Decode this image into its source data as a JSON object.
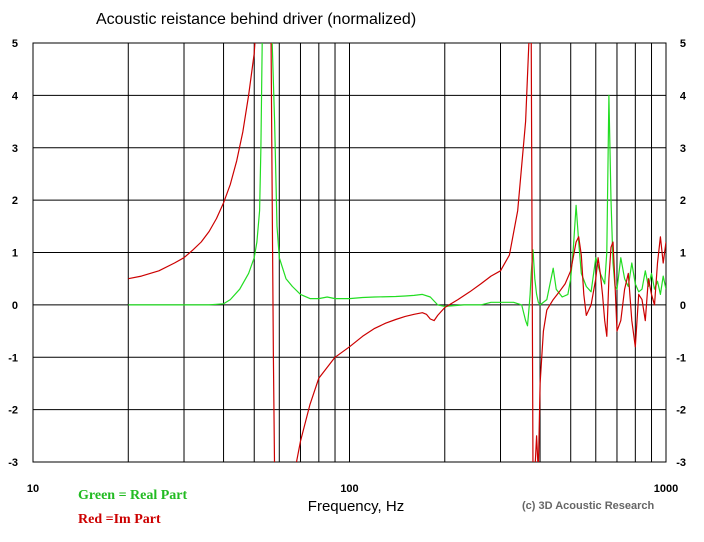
{
  "chart_data": {
    "type": "line",
    "title": "Acoustic reistance behind driver (normalized)",
    "xlabel": "Frequency, Hz",
    "ylabel": "",
    "xscale": "log",
    "xlim": [
      10,
      1000
    ],
    "ylim": [
      -3,
      5
    ],
    "x_ticks": [
      10,
      100,
      1000
    ],
    "x_tick_labels": [
      "10",
      "100",
      "1000"
    ],
    "y_ticks": [
      -3,
      -2,
      -1,
      0,
      1,
      2,
      3,
      4,
      5
    ],
    "y_tick_labels": [
      "-3",
      "-2",
      "-1",
      "0",
      "1",
      "2",
      "3",
      "4",
      "5"
    ],
    "grid": true,
    "legend": [
      {
        "label": "Green = Real Part",
        "color": "#22bb22"
      },
      {
        "label": "Red =Im Part",
        "color": "#cc0000"
      }
    ],
    "credit": "(c) 3D Acoustic Research",
    "series": [
      {
        "name": "Real Part",
        "color": "#22dd22",
        "x": [
          20,
          22,
          25,
          28,
          30,
          33,
          36,
          40,
          42,
          45,
          48,
          50,
          51,
          52,
          52.5,
          53,
          54,
          56,
          57,
          58,
          58.5,
          59,
          60,
          63,
          66,
          70,
          75,
          80,
          85,
          90,
          100,
          110,
          120,
          140,
          150,
          160,
          170,
          180,
          190,
          200,
          230,
          260,
          280,
          300,
          330,
          350,
          360,
          365,
          370,
          372,
          375,
          380,
          385,
          390,
          395,
          400,
          420,
          440,
          450,
          470,
          490,
          500,
          510,
          520,
          530,
          540,
          560,
          580,
          600,
          620,
          640,
          650,
          660,
          670,
          680,
          690,
          700,
          710,
          720,
          740,
          760,
          780,
          800,
          820,
          840,
          860,
          880,
          900,
          920,
          940,
          960,
          980,
          1000
        ],
        "y": [
          0.0,
          0.0,
          0.0,
          0.0,
          0.0,
          0.0,
          0.0,
          0.02,
          0.1,
          0.3,
          0.6,
          0.9,
          1.2,
          1.8,
          3.0,
          5.0,
          5.2,
          5.2,
          5.0,
          3.5,
          2.5,
          1.5,
          0.9,
          0.5,
          0.35,
          0.2,
          0.12,
          0.12,
          0.15,
          0.12,
          0.12,
          0.14,
          0.15,
          0.16,
          0.17,
          0.18,
          0.2,
          0.15,
          0.0,
          -0.03,
          0.0,
          0.0,
          0.05,
          0.05,
          0.05,
          0.0,
          -0.3,
          -0.4,
          0.0,
          0.2,
          0.6,
          1.05,
          0.5,
          0.2,
          0.05,
          0.0,
          0.1,
          0.7,
          0.3,
          0.15,
          0.2,
          0.5,
          1.1,
          1.9,
          1.2,
          0.6,
          0.35,
          0.25,
          0.9,
          0.6,
          0.4,
          1.0,
          4.0,
          2.0,
          0.8,
          0.35,
          0.3,
          0.6,
          0.9,
          0.5,
          0.35,
          0.8,
          0.4,
          0.25,
          0.3,
          0.65,
          0.35,
          0.6,
          0.3,
          0.45,
          0.2,
          0.55,
          0.3
        ]
      },
      {
        "name": "Im Part",
        "color": "#cc0000",
        "x": [
          20,
          22,
          25,
          28,
          30,
          32,
          34,
          36,
          38,
          40,
          42,
          44,
          46,
          48,
          50,
          50.5,
          51,
          51.5,
          52,
          52.5,
          53,
          54,
          55,
          56,
          56.5,
          57,
          57.5,
          58,
          58.5,
          59,
          60,
          62,
          64,
          66,
          68,
          70,
          75,
          80,
          90,
          100,
          110,
          120,
          130,
          140,
          150,
          160,
          170,
          175,
          180,
          185,
          190,
          200,
          220,
          240,
          260,
          280,
          300,
          320,
          340,
          360,
          370,
          375,
          380,
          382,
          385,
          390,
          395,
          400,
          410,
          420,
          440,
          460,
          480,
          500,
          520,
          530,
          540,
          550,
          560,
          580,
          600,
          610,
          620,
          630,
          640,
          650,
          660,
          670,
          680,
          690,
          700,
          720,
          740,
          760,
          780,
          800,
          820,
          840,
          860,
          880,
          900,
          920,
          940,
          960,
          980,
          1000
        ],
        "y": [
          0.5,
          0.55,
          0.65,
          0.8,
          0.9,
          1.05,
          1.2,
          1.4,
          1.65,
          1.95,
          2.3,
          2.75,
          3.3,
          4.0,
          4.8,
          5.2,
          5.2,
          5.2,
          5.2,
          5.2,
          5.2,
          5.2,
          5.2,
          5.2,
          5.2,
          2.0,
          -1.0,
          -3.2,
          -3.2,
          -3.2,
          -3.2,
          -3.2,
          -3.2,
          -3.2,
          -3.0,
          -2.6,
          -1.9,
          -1.4,
          -1.0,
          -0.8,
          -0.6,
          -0.45,
          -0.35,
          -0.28,
          -0.22,
          -0.18,
          -0.15,
          -0.18,
          -0.27,
          -0.3,
          -0.2,
          -0.05,
          0.1,
          0.25,
          0.4,
          0.55,
          0.65,
          0.95,
          1.8,
          3.5,
          5.2,
          5.2,
          -3.2,
          -3.2,
          -3.2,
          -2.5,
          -3.2,
          -1.5,
          -0.5,
          -0.1,
          0.1,
          0.25,
          0.4,
          0.65,
          1.2,
          1.3,
          0.95,
          0.2,
          -0.2,
          0.0,
          0.5,
          0.9,
          0.6,
          0.2,
          -0.3,
          -0.6,
          0.5,
          1.1,
          1.2,
          0.4,
          -0.5,
          -0.3,
          0.3,
          0.6,
          -0.3,
          -0.8,
          0.2,
          0.1,
          -0.3,
          0.5,
          0.2,
          0.0,
          0.8,
          1.3,
          0.8,
          1.2
        ]
      }
    ]
  }
}
